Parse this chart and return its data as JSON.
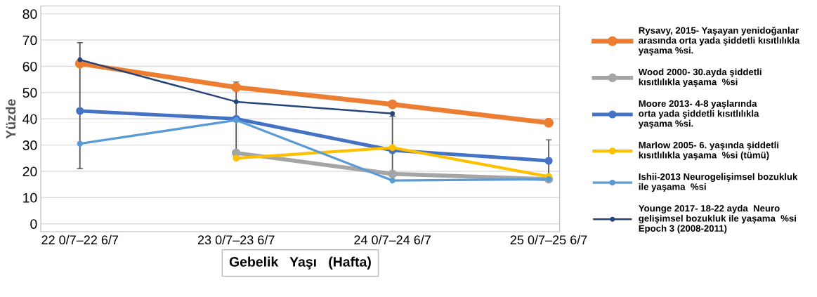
{
  "chart_data": {
    "type": "line",
    "xlabel": "Gebelik   Yaşı   (Hafta)",
    "ylabel": "Yüzde",
    "categories": [
      "22 0/7–22 6/7",
      "23 0/7–23 6/7",
      "24 0/7–24 6/7",
      "25 0/7–25 6/7"
    ],
    "ylim": [
      -3,
      83
    ],
    "yticks": [
      0,
      10,
      20,
      30,
      40,
      50,
      60,
      70,
      80
    ],
    "grid": "y",
    "legend": "right",
    "marker": "circle",
    "line_style": "solid",
    "series": [
      {
        "name": "Rysavy, 2015- Yaşayan yenidoğanlar\narasında orta yada şiddetli kısıtlılıkla\nyaşama %si.",
        "color": "#ed7d31",
        "values": [
          61,
          52,
          45.5,
          38.5
        ]
      },
      {
        "name": "Wood 2000- 30.ayda şiddetli\nkısıtlılıkla yaşama  %si",
        "color": "#a5a5a5",
        "values": [
          null,
          27,
          19,
          17
        ]
      },
      {
        "name": "Moore 2013- 4-8 yaşlarında\norta yada şiddetli kısıtlılıkla\nyaşama %si.",
        "color": "#4472c4",
        "values": [
          43,
          40,
          28,
          24
        ],
        "errors": [
          [
            21,
            69
          ],
          [
            27,
            54
          ],
          [
            18,
            41
          ],
          [
            17,
            32
          ]
        ]
      },
      {
        "name": "Marlow 2005- 6. yaşında şiddetli\nkısıtlılıkla yaşama  %si (tümü)",
        "color": "#ffc000",
        "values": [
          null,
          25,
          29,
          18
        ]
      },
      {
        "name": "Ishii-2013 Neurogelişimsel bozukluk\nile yaşama  %si",
        "color": "#5b9bd5",
        "values": [
          30.5,
          39.5,
          16.5,
          17
        ]
      },
      {
        "name": "Younge 2017- 18-22 ayda  Neuro\ngelişimsel bozukluk ile yaşama  %si\nEpoch 3 (2008-2011)",
        "color": "#264478",
        "values": [
          62.5,
          46.5,
          42,
          null
        ]
      }
    ]
  }
}
